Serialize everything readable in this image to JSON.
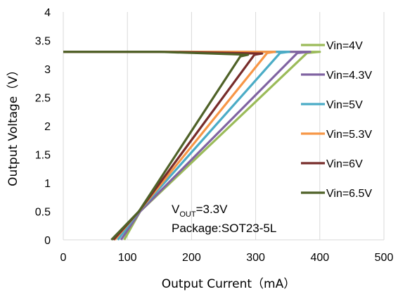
{
  "chart_data": {
    "type": "line",
    "xlabel": "Output Current（mA）",
    "ylabel": "Output Voltage（V）",
    "xlim": [
      0,
      500
    ],
    "ylim": [
      0,
      4
    ],
    "x_ticks": [
      "0",
      "100",
      "200",
      "300",
      "400",
      "500"
    ],
    "y_ticks": [
      "0",
      "0.5",
      "1",
      "1.5",
      "2",
      "2.5",
      "3",
      "3.5",
      "4"
    ],
    "grid": "vertical",
    "legend_position": "right",
    "annotation": {
      "vout_prefix": "V",
      "vout_sub": "OUT",
      "vout_value": "=3.3V",
      "package": "Package:SOT23-5L"
    },
    "series": [
      {
        "name": "Vin=4V",
        "color": "#9bbb59",
        "x": [
          0,
          150,
          400,
          380,
          120,
          95
        ],
        "y": [
          3.3,
          3.3,
          3.3,
          3.28,
          0.5,
          0
        ]
      },
      {
        "name": "Vin=4.3V",
        "color": "#8064a2",
        "x": [
          0,
          150,
          385,
          365,
          120,
          90
        ],
        "y": [
          3.3,
          3.3,
          3.3,
          3.28,
          0.5,
          0
        ]
      },
      {
        "name": "Vin=5V",
        "color": "#4bacc6",
        "x": [
          0,
          150,
          352,
          338,
          118,
          85
        ],
        "y": [
          3.3,
          3.3,
          3.3,
          3.28,
          0.5,
          0
        ]
      },
      {
        "name": "Vin=5.3V",
        "color": "#f79646",
        "x": [
          0,
          150,
          330,
          318,
          118,
          80
        ],
        "y": [
          3.3,
          3.3,
          3.3,
          3.28,
          0.5,
          0
        ]
      },
      {
        "name": "Vin=6V",
        "color": "#772c2a",
        "x": [
          0,
          150,
          310,
          298,
          118,
          78
        ],
        "y": [
          3.3,
          3.3,
          3.27,
          3.25,
          0.5,
          0
        ]
      },
      {
        "name": "Vin=6.5V",
        "color": "#4f6228",
        "x": [
          0,
          150,
          288,
          276,
          118,
          75
        ],
        "y": [
          3.3,
          3.3,
          3.25,
          3.22,
          0.5,
          0
        ]
      }
    ]
  }
}
